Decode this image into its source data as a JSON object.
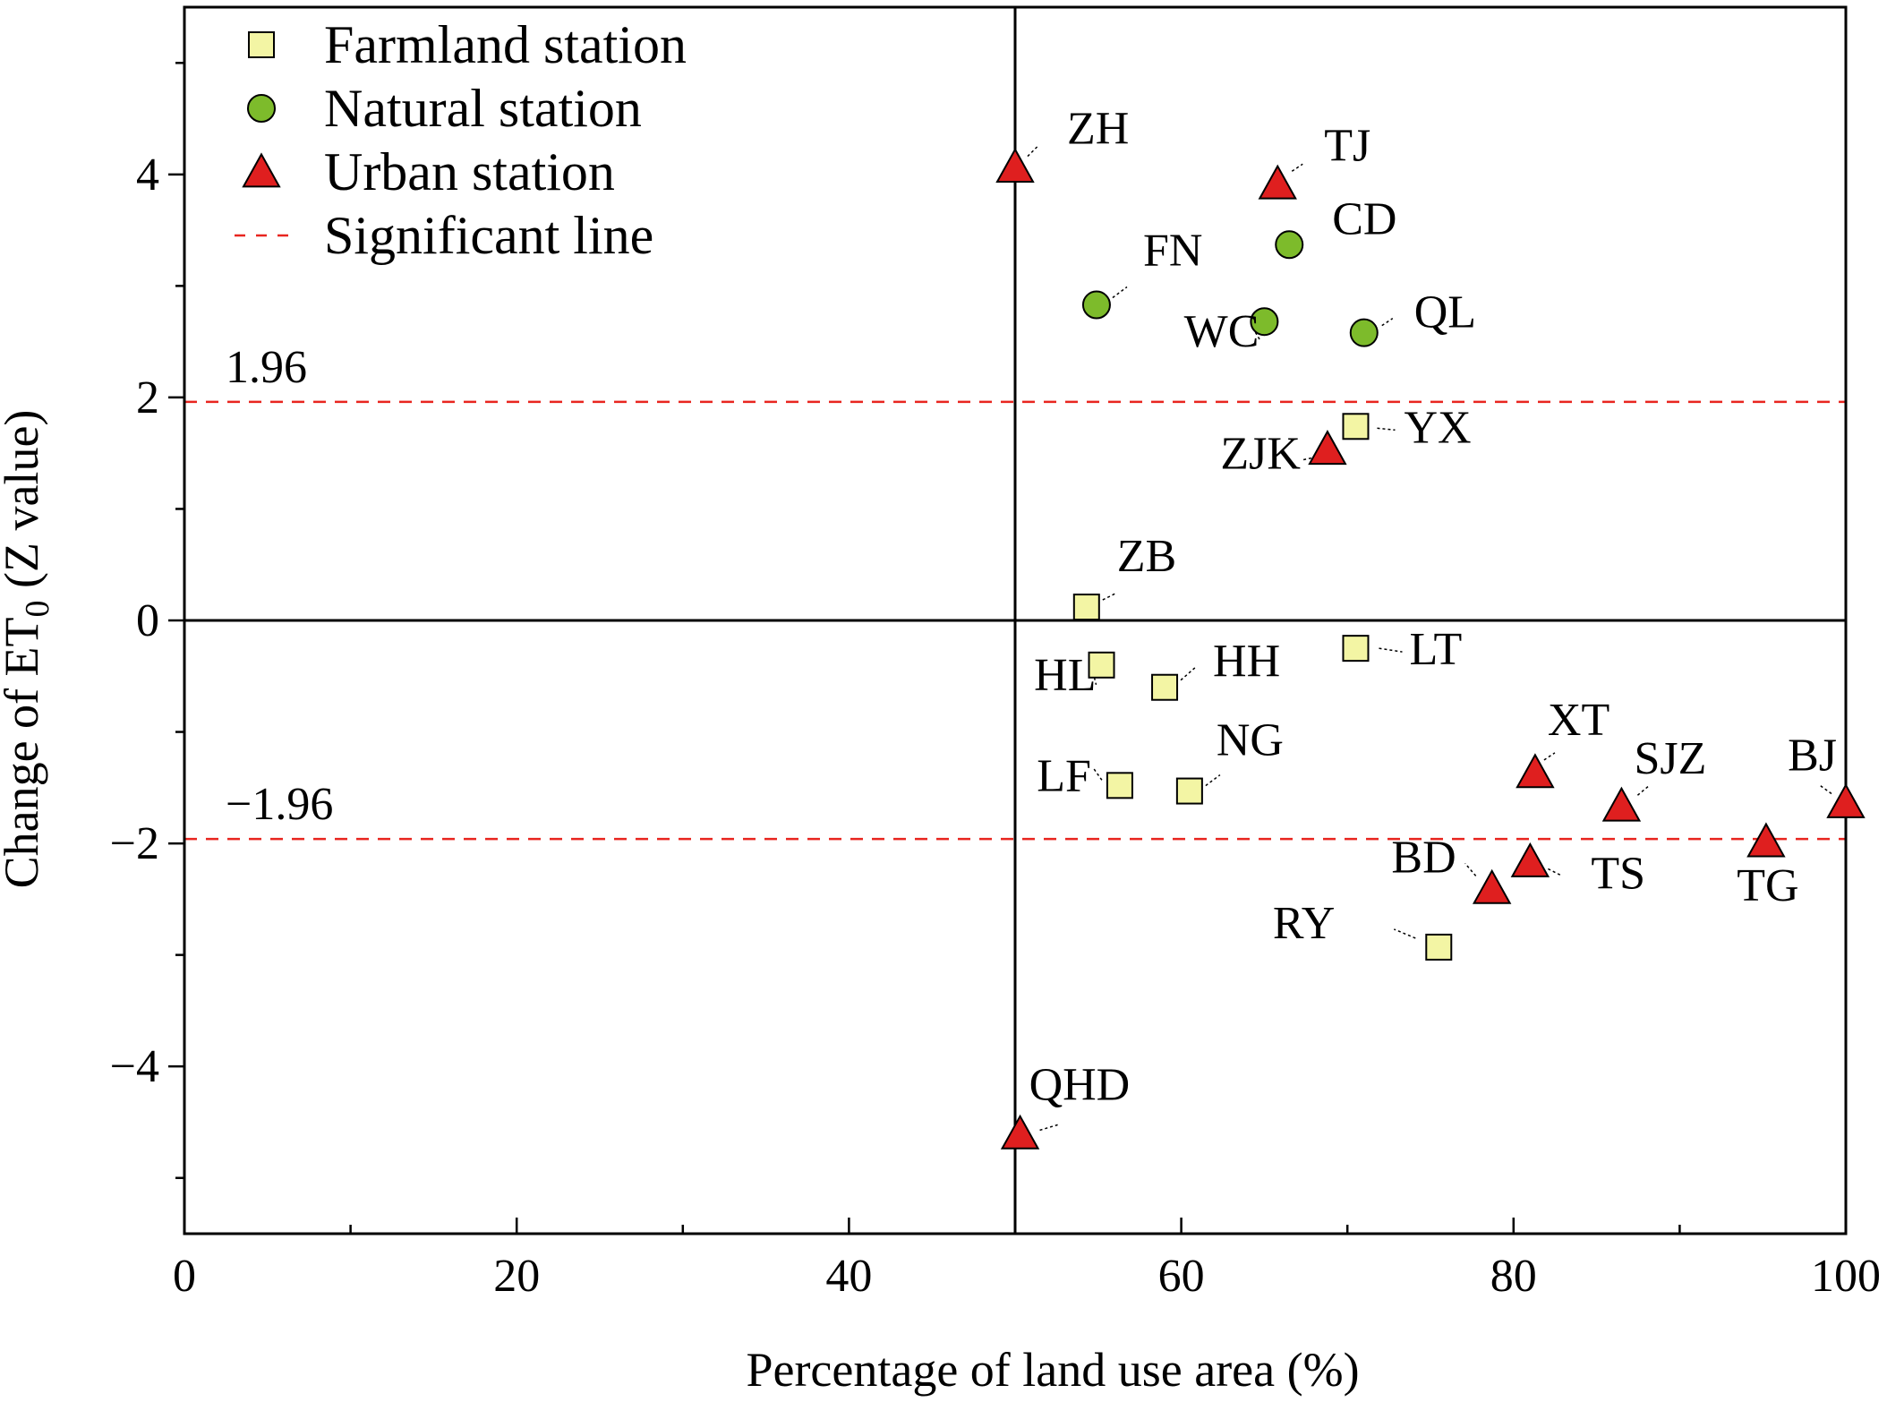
{
  "chart_data": {
    "type": "scatter",
    "xlabel": "Percentage of land use area (%)",
    "ylabel_main": "Change of ET",
    "ylabel_sub": "0",
    "ylabel_tail": " (Z value)",
    "xlim": [
      0,
      100
    ],
    "ylim": [
      -5.5,
      5.5
    ],
    "xticks": [
      0,
      20,
      40,
      60,
      80,
      100
    ],
    "xtick_labels": [
      "0",
      "20",
      "40",
      "60",
      "80",
      "100"
    ],
    "yticks": [
      -4,
      -2,
      0,
      2,
      4
    ],
    "ytick_labels": [
      "−4",
      "−2",
      "0",
      "2",
      "4"
    ],
    "grid": false,
    "legend_position": "top-left",
    "reference_lines": [
      {
        "type": "vertical",
        "x": 50,
        "style": "solid",
        "color": "#000000"
      },
      {
        "type": "horizontal",
        "y": 0,
        "style": "solid",
        "color": "#000000"
      },
      {
        "type": "horizontal",
        "y": 1.96,
        "style": "dashed",
        "color": "#e8251f",
        "label": "1.96"
      },
      {
        "type": "horizontal",
        "y": -1.96,
        "style": "dashed",
        "color": "#e8251f",
        "label": "−1.96"
      }
    ],
    "series": [
      {
        "name": "Farmland station",
        "marker": "square",
        "color": "#f3f5a4",
        "points": [
          {
            "label": "YX",
            "x": 70.5,
            "y": 1.74
          },
          {
            "label": "ZB",
            "x": 54.3,
            "y": 0.12
          },
          {
            "label": "HL",
            "x": 55.2,
            "y": -0.4
          },
          {
            "label": "HH",
            "x": 59.0,
            "y": -0.6
          },
          {
            "label": "LT",
            "x": 70.5,
            "y": -0.25
          },
          {
            "label": "LF",
            "x": 56.3,
            "y": -1.48
          },
          {
            "label": "NG",
            "x": 60.5,
            "y": -1.53
          },
          {
            "label": "RY",
            "x": 75.5,
            "y": -2.93
          }
        ]
      },
      {
        "name": "Natural station",
        "marker": "circle",
        "color": "#7dbb2b",
        "points": [
          {
            "label": "CD",
            "x": 66.5,
            "y": 3.37
          },
          {
            "label": "FN",
            "x": 54.9,
            "y": 2.83
          },
          {
            "label": "WC",
            "x": 65.0,
            "y": 2.68
          },
          {
            "label": "QL",
            "x": 71.0,
            "y": 2.58
          }
        ]
      },
      {
        "name": "Urban station",
        "marker": "triangle",
        "color": "#df1f1f",
        "points": [
          {
            "label": "ZH",
            "x": 50.0,
            "y": 4.05
          },
          {
            "label": "TJ",
            "x": 65.8,
            "y": 3.9
          },
          {
            "label": "ZJK",
            "x": 68.8,
            "y": 1.52
          },
          {
            "label": "XT",
            "x": 81.3,
            "y": -1.38
          },
          {
            "label": "SJZ",
            "x": 86.5,
            "y": -1.68
          },
          {
            "label": "BJ",
            "x": 100.0,
            "y": -1.65
          },
          {
            "label": "TG",
            "x": 95.2,
            "y": -2.0
          },
          {
            "label": "TS",
            "x": 81.0,
            "y": -2.18
          },
          {
            "label": "BD",
            "x": 78.7,
            "y": -2.42
          },
          {
            "label": "QHD",
            "x": 50.3,
            "y": -4.62
          }
        ]
      }
    ],
    "legend": [
      {
        "label": "Farmland station",
        "marker": "square",
        "color": "#f3f5a4"
      },
      {
        "label": "Natural station",
        "marker": "circle",
        "color": "#7dbb2b"
      },
      {
        "label": "Urban station",
        "marker": "triangle",
        "color": "#df1f1f"
      },
      {
        "label": "Significant line",
        "marker": "dashed-line",
        "color": "#e8251f"
      }
    ]
  }
}
